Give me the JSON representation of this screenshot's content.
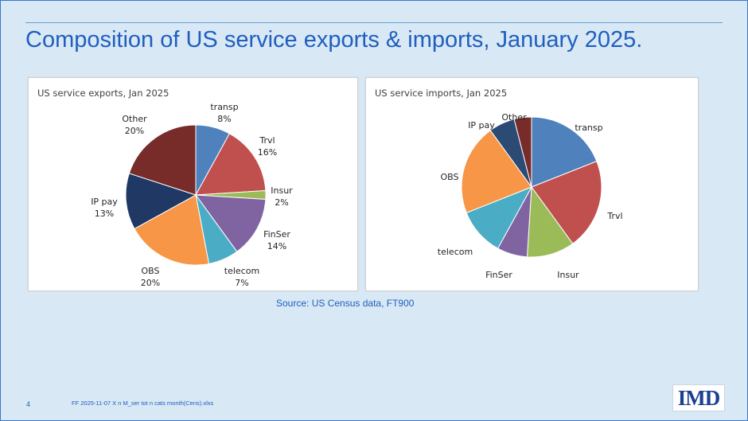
{
  "slide": {
    "title": "Composition of US service exports & imports, January 2025.",
    "source": "Source: US Census data, FT900",
    "page_number": "4",
    "footnote": "FF 2025-11-07 X n M_ser tot n cats month(Cens).xlxs",
    "logo_text": "IMD"
  },
  "chart_data": [
    {
      "type": "pie",
      "title": "US service exports, Jan 2025",
      "labels": [
        "transp",
        "Trvl",
        "Insur",
        "FinSer",
        "telecom",
        "OBS",
        "IP pay",
        "Other"
      ],
      "values": [
        8,
        16,
        2,
        14,
        7,
        20,
        13,
        20
      ],
      "value_labels": [
        "8%",
        "16%",
        "2%",
        "14%",
        "7%",
        "20%",
        "13%",
        "20%"
      ],
      "colors": [
        "#4f81bd",
        "#c0504d",
        "#9bbb59",
        "#8064a2",
        "#4bacc6",
        "#f79646",
        "#1f3864",
        "#772c2a"
      ]
    },
    {
      "type": "pie",
      "title": "US service imports, Jan 2025",
      "labels": [
        "transp",
        "Trvl",
        "Insur",
        "FinSer",
        "telecom",
        "OBS",
        "IP pay",
        "Other"
      ],
      "values": [
        19,
        21,
        11,
        7,
        11,
        21,
        6,
        4
      ],
      "colors": [
        "#4f81bd",
        "#c0504d",
        "#9bbb59",
        "#8064a2",
        "#4bacc6",
        "#f79646",
        "#2b4a74",
        "#772c2a"
      ]
    }
  ]
}
